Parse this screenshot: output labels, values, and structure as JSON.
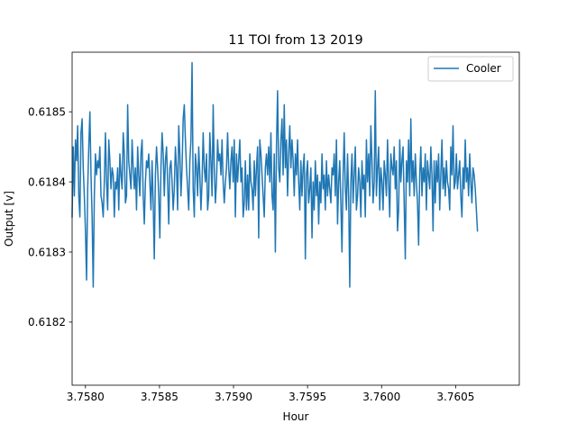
{
  "chart_data": {
    "type": "line",
    "title": "11 TOI from 13 2019",
    "xlabel": "Hour",
    "ylabel": "Output [v]",
    "xlim": [
      3.75791,
      3.76093
    ],
    "ylim": [
      0.61811,
      0.618585
    ],
    "xticks": [
      3.758,
      3.7585,
      3.759,
      3.7595,
      3.76,
      3.7605
    ],
    "xtick_labels": [
      "3.7580",
      "3.7585",
      "3.7590",
      "3.7595",
      "3.7600",
      "3.7605"
    ],
    "yticks": [
      0.6182,
      0.6183,
      0.6184,
      0.6185
    ],
    "ytick_labels": [
      "0.6182",
      "0.6183",
      "0.6184",
      "0.6185"
    ],
    "grid": false,
    "legend_position": "top-right",
    "series": [
      {
        "name": "Cooler",
        "color": "#1f77b4",
        "x_start": 3.75791,
        "x_step": 7.5e-06,
        "y": [
          0.61835,
          0.61845,
          0.61838,
          0.61846,
          0.61843,
          0.61848,
          0.61838,
          0.61835,
          0.61847,
          0.61849,
          0.61842,
          0.61838,
          0.61833,
          0.61826,
          0.61839,
          0.61845,
          0.6185,
          0.61841,
          0.61835,
          0.61825,
          0.61838,
          0.61844,
          0.61841,
          0.61843,
          0.61842,
          0.61845,
          0.61838,
          0.61837,
          0.61835,
          0.6184,
          0.61847,
          0.6184,
          0.61836,
          0.61846,
          0.61843,
          0.61839,
          0.61842,
          0.61841,
          0.61835,
          0.6184,
          0.61839,
          0.61842,
          0.61836,
          0.61844,
          0.61841,
          0.61839,
          0.61847,
          0.61844,
          0.61837,
          0.61838,
          0.61851,
          0.61843,
          0.61841,
          0.61839,
          0.61846,
          0.61842,
          0.61839,
          0.61842,
          0.61836,
          0.61845,
          0.61841,
          0.61838,
          0.61844,
          0.61846,
          0.61838,
          0.61834,
          0.6184,
          0.61843,
          0.61842,
          0.61844,
          0.6184,
          0.61836,
          0.61843,
          0.61837,
          0.61829,
          0.61841,
          0.61845,
          0.61842,
          0.61838,
          0.61832,
          0.61842,
          0.61847,
          0.61844,
          0.61838,
          0.61843,
          0.61845,
          0.6184,
          0.61834,
          0.61842,
          0.61843,
          0.6184,
          0.61836,
          0.61839,
          0.61845,
          0.61842,
          0.61836,
          0.61848,
          0.61844,
          0.61838,
          0.61842,
          0.61849,
          0.61851,
          0.61846,
          0.61842,
          0.61839,
          0.61836,
          0.61843,
          0.61846,
          0.61857,
          0.61839,
          0.61835,
          0.61844,
          0.61842,
          0.61838,
          0.61845,
          0.61841,
          0.61836,
          0.6184,
          0.61847,
          0.61842,
          0.6184,
          0.61844,
          0.61836,
          0.61838,
          0.61847,
          0.61843,
          0.61838,
          0.61851,
          0.61842,
          0.61837,
          0.6184,
          0.61846,
          0.61843,
          0.61844,
          0.61841,
          0.61846,
          0.6184,
          0.61837,
          0.6184,
          0.61842,
          0.61847,
          0.61842,
          0.61839,
          0.61843,
          0.61845,
          0.6184,
          0.61846,
          0.61835,
          0.61844,
          0.6184,
          0.61843,
          0.61846,
          0.6184,
          0.61842,
          0.61835,
          0.61837,
          0.61843,
          0.61836,
          0.61841,
          0.61836,
          0.61844,
          0.6184,
          0.61839,
          0.61836,
          0.61843,
          0.61838,
          0.61842,
          0.61845,
          0.61832,
          0.61846,
          0.61844,
          0.61841,
          0.61838,
          0.61835,
          0.61842,
          0.61844,
          0.61841,
          0.61845,
          0.6184,
          0.61847,
          0.61838,
          0.61836,
          0.61844,
          0.6183,
          0.61845,
          0.61853,
          0.61842,
          0.6184,
          0.61846,
          0.61849,
          0.61841,
          0.61851,
          0.61842,
          0.61846,
          0.61838,
          0.61844,
          0.61848,
          0.61842,
          0.61846,
          0.61843,
          0.61838,
          0.61844,
          0.61841,
          0.61846,
          0.6184,
          0.61836,
          0.61843,
          0.61838,
          0.61842,
          0.61844,
          0.61829,
          0.61841,
          0.61843,
          0.61837,
          0.61839,
          0.61842,
          0.61832,
          0.6184,
          0.61836,
          0.61843,
          0.61838,
          0.61841,
          0.61834,
          0.6184,
          0.61837,
          0.61844,
          0.61839,
          0.61841,
          0.61836,
          0.61843,
          0.61838,
          0.61841,
          0.61839,
          0.61837,
          0.61842,
          0.61841,
          0.61844,
          0.61838,
          0.61846,
          0.61834,
          0.6184,
          0.61843,
          0.61837,
          0.6183,
          0.61841,
          0.61847,
          0.61839,
          0.61836,
          0.61844,
          0.61838,
          0.61825,
          0.6184,
          0.61844,
          0.61837,
          0.61841,
          0.61845,
          0.61836,
          0.61838,
          0.61842,
          0.6184,
          0.61835,
          0.61843,
          0.61839,
          0.61841,
          0.61835,
          0.61846,
          0.6184,
          0.61844,
          0.61838,
          0.61848,
          0.61843,
          0.61837,
          0.6184,
          0.61853,
          0.61838,
          0.61842,
          0.61845,
          0.61836,
          0.61842,
          0.6184,
          0.61836,
          0.61843,
          0.61841,
          0.61838,
          0.61846,
          0.6184,
          0.61835,
          0.61844,
          0.61842,
          0.61841,
          0.61845,
          0.61839,
          0.61843,
          0.61833,
          0.61836,
          0.61846,
          0.6184,
          0.61843,
          0.61845,
          0.61837,
          0.61829,
          0.61843,
          0.6184,
          0.61846,
          0.61838,
          0.61849,
          0.6184,
          0.61843,
          0.61838,
          0.61844,
          0.6184,
          0.61837,
          0.61831,
          0.61841,
          0.61845,
          0.61838,
          0.61842,
          0.6184,
          0.61844,
          0.61836,
          0.61843,
          0.61841,
          0.61839,
          0.61845,
          0.61841,
          0.61833,
          0.61843,
          0.61837,
          0.61843,
          0.6184,
          0.61844,
          0.61836,
          0.61841,
          0.61846,
          0.61839,
          0.61842,
          0.61838,
          0.61843,
          0.6184,
          0.61839,
          0.61836,
          0.61845,
          0.61841,
          0.61848,
          0.61839,
          0.6184,
          0.61844,
          0.61839,
          0.61841,
          0.61843,
          0.61838,
          0.61835,
          0.61842,
          0.61839,
          0.61846,
          0.6184,
          0.61842,
          0.61838,
          0.61844,
          0.6184,
          0.61837,
          0.61842,
          0.61841,
          0.61839,
          0.61836,
          0.61833
        ]
      }
    ]
  }
}
